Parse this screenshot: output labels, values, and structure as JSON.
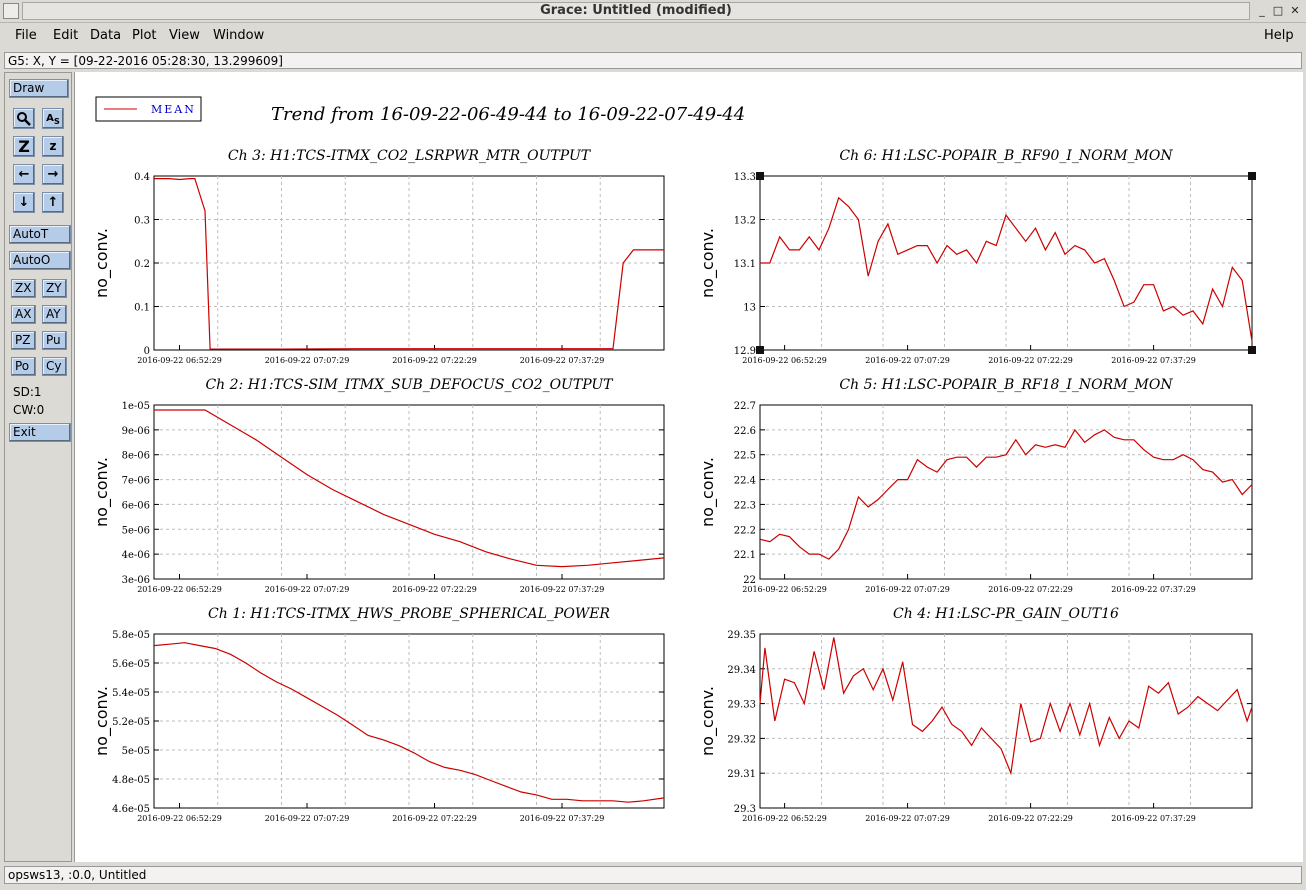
{
  "window": {
    "title": "Grace: Untitled (modified)"
  },
  "menubar": {
    "items": [
      "File",
      "Edit",
      "Data",
      "Plot",
      "View",
      "Window"
    ],
    "help": "Help"
  },
  "locator": "G5: X, Y = [09-22-2016 05:28:30, 13.299609]",
  "toolbar": {
    "draw": "Draw",
    "autot": "AutoT",
    "autoo": "AutoO",
    "zx": "ZX",
    "zy": "ZY",
    "ax": "AX",
    "ay": "AY",
    "pz": "PZ",
    "pu": "Pu",
    "po": "Po",
    "cy": "Cy",
    "sd": "SD:1",
    "cw": "CW:0",
    "exit": "Exit"
  },
  "status": "opsws13, :0.0, Untitled",
  "plot_title": "Trend from 16-09-22-06-49-44 to 16-09-22-07-49-44",
  "legend": {
    "label": "MEAN",
    "color": "#cc0000"
  },
  "line_color": "#cc0000",
  "chart_data": [
    {
      "type": "line",
      "title": "Ch 3: H1:TCS-ITMX_CO2_LSRPWR_MTR_OUTPUT",
      "ylabel": "no_conv.",
      "ylim": [
        0,
        0.4
      ],
      "yticks": [
        "0",
        "0.1",
        "0.2",
        "0.3",
        "0.4"
      ],
      "xticks": [
        "2016-09-22 06:52:29",
        "2016-09-22 07:07:29",
        "2016-09-22 07:22:29",
        "2016-09-22 07:37:29"
      ],
      "x": [
        0,
        3,
        5,
        7,
        8,
        10,
        11,
        12,
        13,
        17,
        25,
        40,
        50,
        60,
        65,
        67,
        69,
        70,
        80,
        85,
        90,
        92,
        94,
        100
      ],
      "y": [
        0.394,
        0.394,
        0.392,
        0.394,
        0.394,
        0.32,
        0.002,
        0.002,
        0.002,
        0.002,
        0.002,
        0.003,
        0.003,
        0.003,
        0.003,
        0.003,
        0.003,
        0.003,
        0.003,
        0.003,
        0.003,
        0.2,
        0.23,
        0.23
      ]
    },
    {
      "type": "line",
      "title": "Ch 6: H1:LSC-POPAIR_B_RF90_I_NORM_MON",
      "ylabel": "no_conv.",
      "ylim": [
        12.9,
        13.3
      ],
      "yticks": [
        "12.9",
        "13",
        "13.1",
        "13.2",
        "13.3"
      ],
      "xticks": [
        "2016-09-22 06:52:29",
        "2016-09-22 07:07:29",
        "2016-09-22 07:22:29",
        "2016-09-22 07:37:29"
      ],
      "x": [
        0,
        2,
        4,
        6,
        8,
        10,
        12,
        14,
        16,
        18,
        20,
        22,
        24,
        26,
        28,
        30,
        32,
        34,
        36,
        38,
        40,
        42,
        44,
        46,
        48,
        50,
        52,
        54,
        56,
        58,
        60,
        62,
        64,
        66,
        68,
        70,
        72,
        74,
        76,
        78,
        80,
        82,
        84,
        86,
        88,
        90,
        92,
        94,
        96,
        98,
        100
      ],
      "y": [
        13.1,
        13.1,
        13.16,
        13.13,
        13.13,
        13.16,
        13.13,
        13.18,
        13.25,
        13.23,
        13.2,
        13.07,
        13.15,
        13.19,
        13.12,
        13.13,
        13.14,
        13.14,
        13.1,
        13.14,
        13.12,
        13.13,
        13.1,
        13.15,
        13.14,
        13.21,
        13.18,
        13.15,
        13.18,
        13.13,
        13.17,
        13.12,
        13.14,
        13.13,
        13.1,
        13.11,
        13.06,
        13.0,
        13.01,
        13.05,
        13.05,
        12.99,
        13.0,
        12.98,
        12.99,
        12.96,
        13.04,
        13.0,
        13.09,
        13.06,
        12.92
      ]
    },
    {
      "type": "line",
      "title": "Ch 2: H1:TCS-SIM_ITMX_SUB_DEFOCUS_CO2_OUTPUT",
      "ylabel": "no_conv.",
      "ylim": [
        3e-06,
        1e-05
      ],
      "yticks": [
        "3e-06",
        "4e-06",
        "5e-06",
        "6e-06",
        "7e-06",
        "8e-06",
        "9e-06",
        "1e-05"
      ],
      "xticks": [
        "2016-09-22 06:52:29",
        "2016-09-22 07:07:29",
        "2016-09-22 07:22:29",
        "2016-09-22 07:37:29"
      ],
      "x": [
        0,
        5,
        10,
        15,
        20,
        25,
        30,
        35,
        40,
        45,
        50,
        55,
        60,
        65,
        70,
        75,
        80,
        85,
        90,
        95,
        100
      ],
      "y": [
        9.8e-06,
        9.8e-06,
        9.8e-06,
        9.2e-06,
        8.6e-06,
        7.9e-06,
        7.2e-06,
        6.6e-06,
        6.1e-06,
        5.6e-06,
        5.2e-06,
        4.8e-06,
        4.5e-06,
        4.1e-06,
        3.8e-06,
        3.55e-06,
        3.5e-06,
        3.55e-06,
        3.65e-06,
        3.75e-06,
        3.85e-06
      ]
    },
    {
      "type": "line",
      "title": "Ch 5: H1:LSC-POPAIR_B_RF18_I_NORM_MON",
      "ylabel": "no_conv.",
      "ylim": [
        22,
        22.7
      ],
      "yticks": [
        "22",
        "22.1",
        "22.2",
        "22.3",
        "22.4",
        "22.5",
        "22.6",
        "22.7"
      ],
      "xticks": [
        "2016-09-22 06:52:29",
        "2016-09-22 07:07:29",
        "2016-09-22 07:22:29",
        "2016-09-22 07:37:29"
      ],
      "x": [
        0,
        2,
        4,
        6,
        8,
        10,
        12,
        14,
        16,
        18,
        20,
        22,
        24,
        26,
        28,
        30,
        32,
        34,
        36,
        38,
        40,
        42,
        44,
        46,
        48,
        50,
        52,
        54,
        56,
        58,
        60,
        62,
        64,
        66,
        68,
        70,
        72,
        74,
        76,
        78,
        80,
        82,
        84,
        86,
        88,
        90,
        92,
        94,
        96,
        98,
        100
      ],
      "y": [
        22.16,
        22.15,
        22.18,
        22.17,
        22.13,
        22.1,
        22.1,
        22.08,
        22.12,
        22.2,
        22.33,
        22.29,
        22.32,
        22.36,
        22.4,
        22.4,
        22.48,
        22.45,
        22.43,
        22.48,
        22.49,
        22.49,
        22.45,
        22.49,
        22.49,
        22.5,
        22.56,
        22.5,
        22.54,
        22.53,
        22.54,
        22.53,
        22.6,
        22.55,
        22.58,
        22.6,
        22.57,
        22.56,
        22.56,
        22.52,
        22.49,
        22.48,
        22.48,
        22.5,
        22.48,
        22.44,
        22.43,
        22.39,
        22.4,
        22.34,
        22.38
      ]
    },
    {
      "type": "line",
      "title": "Ch 1: H1:TCS-ITMX_HWS_PROBE_SPHERICAL_POWER",
      "ylabel": "no_conv.",
      "ylim": [
        4.6e-05,
        5.8e-05
      ],
      "yticks": [
        "4.6e-05",
        "4.8e-05",
        "5e-05",
        "5.2e-05",
        "5.4e-05",
        "5.6e-05",
        "5.8e-05"
      ],
      "xticks": [
        "2016-09-22 06:52:29",
        "2016-09-22 07:07:29",
        "2016-09-22 07:22:29",
        "2016-09-22 07:37:29"
      ],
      "x": [
        0,
        3,
        6,
        9,
        12,
        15,
        18,
        21,
        24,
        27,
        30,
        33,
        36,
        39,
        42,
        45,
        48,
        51,
        54,
        57,
        60,
        63,
        66,
        69,
        72,
        75,
        78,
        81,
        84,
        87,
        90,
        93,
        96,
        100
      ],
      "y": [
        5.72e-05,
        5.73e-05,
        5.74e-05,
        5.72e-05,
        5.7e-05,
        5.66e-05,
        5.6e-05,
        5.53e-05,
        5.47e-05,
        5.42e-05,
        5.36e-05,
        5.3e-05,
        5.24e-05,
        5.17e-05,
        5.1e-05,
        5.07e-05,
        5.03e-05,
        4.98e-05,
        4.92e-05,
        4.88e-05,
        4.86e-05,
        4.83e-05,
        4.79e-05,
        4.75e-05,
        4.71e-05,
        4.69e-05,
        4.66e-05,
        4.66e-05,
        4.65e-05,
        4.65e-05,
        4.65e-05,
        4.64e-05,
        4.65e-05,
        4.67e-05
      ]
    },
    {
      "type": "line",
      "title": "Ch 4: H1:LSC-PR_GAIN_OUT16",
      "ylabel": "no_conv.",
      "ylim": [
        29.3,
        29.35
      ],
      "yticks": [
        "29.3",
        "29.31",
        "29.32",
        "29.33",
        "29.34",
        "29.35"
      ],
      "xticks": [
        "2016-09-22 06:52:29",
        "2016-09-22 07:07:29",
        "2016-09-22 07:22:29",
        "2016-09-22 07:37:29"
      ],
      "x": [
        0,
        1,
        3,
        5,
        7,
        9,
        11,
        13,
        15,
        17,
        19,
        21,
        23,
        25,
        27,
        29,
        31,
        33,
        35,
        37,
        39,
        41,
        43,
        45,
        47,
        49,
        51,
        53,
        55,
        57,
        59,
        61,
        63,
        65,
        67,
        69,
        71,
        73,
        75,
        77,
        79,
        81,
        83,
        85,
        87,
        89,
        91,
        93,
        95,
        97,
        99,
        100
      ],
      "y": [
        29.33,
        29.346,
        29.325,
        29.337,
        29.336,
        29.33,
        29.345,
        29.334,
        29.349,
        29.333,
        29.338,
        29.34,
        29.334,
        29.34,
        29.331,
        29.342,
        29.324,
        29.322,
        29.325,
        29.329,
        29.324,
        29.322,
        29.318,
        29.323,
        29.32,
        29.317,
        29.31,
        29.33,
        29.319,
        29.32,
        29.33,
        29.322,
        29.33,
        29.321,
        29.33,
        29.318,
        29.326,
        29.32,
        29.325,
        29.323,
        29.335,
        29.333,
        29.336,
        29.327,
        29.329,
        29.332,
        29.33,
        29.328,
        29.331,
        29.334,
        29.325,
        29.329
      ]
    }
  ]
}
